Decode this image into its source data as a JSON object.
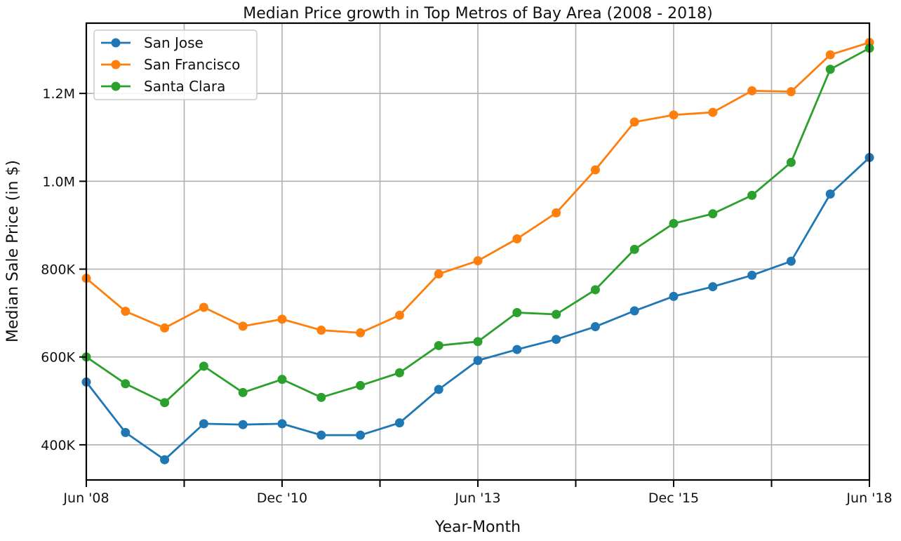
{
  "chart_data": {
    "type": "line",
    "title": "Median Price growth in Top Metros of Bay Area (2008 - 2018)",
    "xlabel": "Year-Month",
    "ylabel": "Median Sale Price (in $)",
    "x": [
      "Jun '08",
      "Dec '08",
      "Jun '09",
      "Dec '09",
      "Jun '10",
      "Dec '10",
      "Jun '11",
      "Dec '11",
      "Jun '12",
      "Dec '12",
      "Jun '13",
      "Dec '13",
      "Jun '14",
      "Dec '14",
      "Jun '15",
      "Dec '15",
      "Jun '16",
      "Dec '16",
      "Jun '17",
      "Dec '17",
      "Jun '18"
    ],
    "x_tick_labels": [
      "Jun '08",
      "",
      "Dec '10",
      "",
      "Jun '13",
      "",
      "Dec '15",
      "",
      "Jun '18"
    ],
    "xlim": [
      0,
      20
    ],
    "ylim": [
      320000,
      1360000
    ],
    "y_ticks": [
      400000,
      600000,
      800000,
      1000000,
      1200000
    ],
    "y_tick_labels": [
      "400K",
      "600K",
      "800K",
      "1.0M",
      "1.2M"
    ],
    "grid": true,
    "legend_position": "top-left",
    "series": [
      {
        "name": "San Jose",
        "color": "#1f77b4",
        "values": [
          543000,
          428000,
          366000,
          448000,
          446000,
          448000,
          422000,
          422000,
          450000,
          526000,
          592000,
          617000,
          640000,
          669000,
          705000,
          738000,
          760000,
          786000,
          818000,
          971000,
          1054000
        ]
      },
      {
        "name": "San Francisco",
        "color": "#ff7f0e",
        "values": [
          779000,
          704000,
          666000,
          713000,
          670000,
          686000,
          661000,
          655000,
          695000,
          789000,
          819000,
          869000,
          928000,
          1026000,
          1135000,
          1151000,
          1157000,
          1206000,
          1204000,
          1288000,
          1316000
        ]
      },
      {
        "name": "Santa Clara",
        "color": "#2ca02c",
        "values": [
          600000,
          539000,
          496000,
          579000,
          519000,
          549000,
          508000,
          535000,
          564000,
          626000,
          635000,
          701000,
          697000,
          753000,
          845000,
          904000,
          926000,
          968000,
          1043000,
          1255000,
          1303000
        ]
      }
    ]
  }
}
